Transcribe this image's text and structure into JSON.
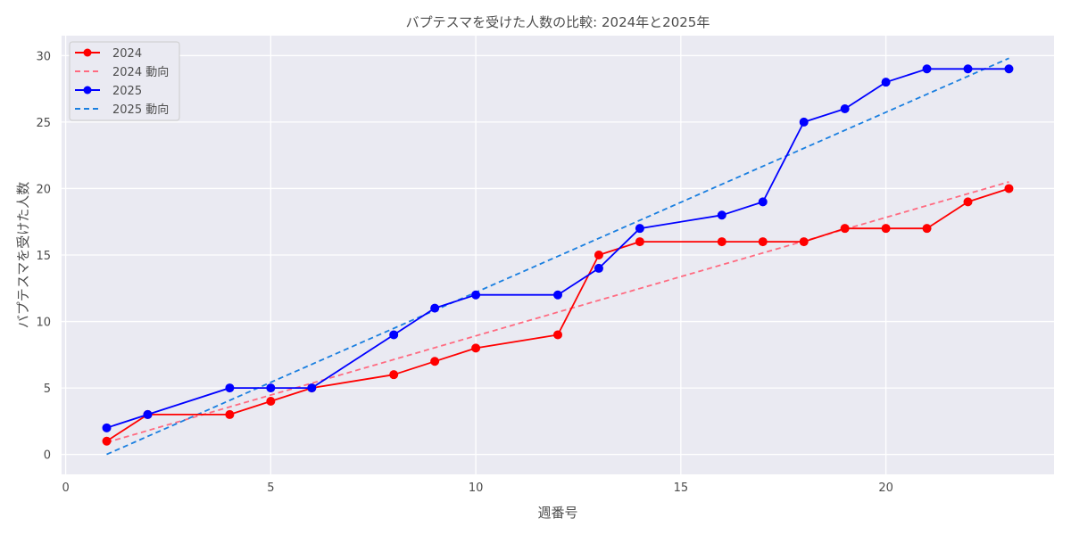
{
  "chart_data": {
    "type": "line",
    "title": "バプテスマを受けた人数の比較: 2024年と2025年",
    "xlabel": "週番号",
    "ylabel": "バプテスマを受けた人数",
    "xlim": [
      -0.1,
      24.1
    ],
    "ylim": [
      -1.5,
      31.5
    ],
    "xticks": [
      0,
      5,
      10,
      15,
      20
    ],
    "yticks": [
      0,
      5,
      10,
      15,
      20,
      25,
      30
    ],
    "grid": true,
    "legend_position": "top-left",
    "series": [
      {
        "name": "2024",
        "color": "#ff0000",
        "style": "solid-marker",
        "x": [
          1,
          2,
          4,
          5,
          6,
          8,
          9,
          10,
          12,
          13,
          14,
          16,
          17,
          18,
          19,
          20,
          21,
          22,
          23
        ],
        "y": [
          1,
          3,
          3,
          4,
          5,
          6,
          7,
          8,
          9,
          15,
          16,
          16,
          16,
          16,
          17,
          17,
          17,
          19,
          20
        ]
      },
      {
        "name": "2024 動向",
        "color": "#ff6b81",
        "style": "dashed",
        "x": [
          1,
          23
        ],
        "y": [
          0.9,
          20.5
        ]
      },
      {
        "name": "2025",
        "color": "#0000ff",
        "style": "solid-marker",
        "x": [
          1,
          2,
          4,
          5,
          6,
          8,
          9,
          10,
          12,
          13,
          14,
          16,
          17,
          18,
          19,
          20,
          21,
          22,
          23
        ],
        "y": [
          2,
          3,
          5,
          5,
          5,
          9,
          11,
          12,
          12,
          14,
          17,
          18,
          19,
          25,
          26,
          28,
          29,
          29,
          29
        ]
      },
      {
        "name": "2025 動向",
        "color": "#1a7fe0",
        "style": "dashed",
        "x": [
          1,
          23
        ],
        "y": [
          0.0,
          29.8
        ]
      }
    ]
  }
}
